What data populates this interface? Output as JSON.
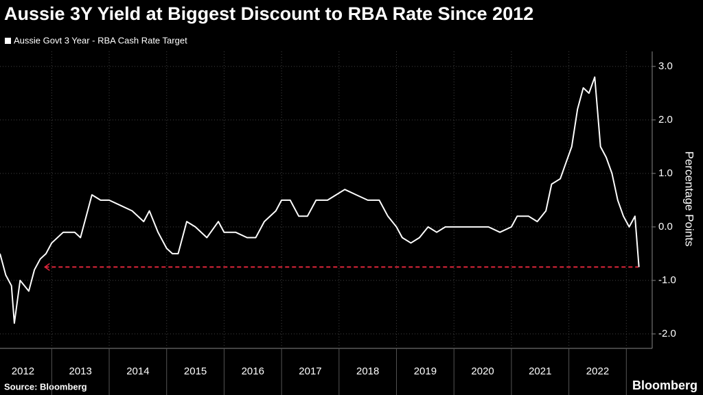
{
  "chart_data": {
    "type": "line",
    "title": "Aussie 3Y Yield at Biggest Discount to RBA Rate Since 2012",
    "y_axis_label": "Percentage Points",
    "source": "Source: Bloomberg",
    "brand": "Bloomberg",
    "series": [
      {
        "name": "Aussie Govt 3 Year - RBA Cash Rate Target",
        "color": "#ffffff",
        "x": [
          2012.1,
          2012.2,
          2012.3,
          2012.35,
          2012.45,
          2012.6,
          2012.7,
          2012.8,
          2012.9,
          2013.0,
          2013.2,
          2013.4,
          2013.5,
          2013.6,
          2013.7,
          2013.85,
          2014.0,
          2014.2,
          2014.4,
          2014.6,
          2014.7,
          2014.85,
          2015.0,
          2015.1,
          2015.2,
          2015.35,
          2015.5,
          2015.7,
          2015.9,
          2016.0,
          2016.2,
          2016.4,
          2016.55,
          2016.7,
          2016.9,
          2017.0,
          2017.15,
          2017.3,
          2017.45,
          2017.6,
          2017.8,
          2017.95,
          2018.1,
          2018.3,
          2018.5,
          2018.7,
          2018.85,
          2019.0,
          2019.1,
          2019.25,
          2019.4,
          2019.55,
          2019.7,
          2019.85,
          2020.0,
          2020.3,
          2020.6,
          2020.8,
          2021.0,
          2021.1,
          2021.3,
          2021.45,
          2021.6,
          2021.7,
          2021.85,
          2021.95,
          2022.05,
          2022.15,
          2022.25,
          2022.35,
          2022.45,
          2022.55,
          2022.65,
          2022.75,
          2022.85,
          2022.95,
          2023.05,
          2023.15,
          2023.22
        ],
        "values": [
          -0.5,
          -0.9,
          -1.1,
          -1.8,
          -1.0,
          -1.2,
          -0.8,
          -0.6,
          -0.5,
          -0.3,
          -0.1,
          -0.1,
          -0.2,
          0.2,
          0.6,
          0.5,
          0.5,
          0.4,
          0.3,
          0.1,
          0.3,
          -0.1,
          -0.4,
          -0.5,
          -0.5,
          0.1,
          0.0,
          -0.2,
          0.1,
          -0.1,
          -0.1,
          -0.2,
          -0.2,
          0.1,
          0.3,
          0.5,
          0.5,
          0.2,
          0.2,
          0.5,
          0.5,
          0.6,
          0.7,
          0.6,
          0.5,
          0.5,
          0.2,
          0.0,
          -0.2,
          -0.3,
          -0.2,
          0.0,
          -0.1,
          0.0,
          0.0,
          0.0,
          0.0,
          -0.1,
          0.0,
          0.2,
          0.2,
          0.1,
          0.3,
          0.8,
          0.9,
          1.2,
          1.5,
          2.2,
          2.6,
          2.5,
          2.8,
          1.5,
          1.3,
          1.0,
          0.5,
          0.2,
          0.0,
          0.2,
          -0.75
        ]
      }
    ],
    "reference_line": {
      "value": -0.75,
      "x": [
        2012.88,
        2023.21
      ],
      "color": "#e0263b"
    },
    "xlim": [
      2012.1,
      2023.45
    ],
    "xticks": [
      {
        "value": 2012.5,
        "label": "2012"
      },
      {
        "value": 2013.5,
        "label": "2013"
      },
      {
        "value": 2014.5,
        "label": "2014"
      },
      {
        "value": 2015.5,
        "label": "2015"
      },
      {
        "value": 2016.5,
        "label": "2016"
      },
      {
        "value": 2017.5,
        "label": "2017"
      },
      {
        "value": 2018.5,
        "label": "2018"
      },
      {
        "value": 2019.5,
        "label": "2019"
      },
      {
        "value": 2020.5,
        "label": "2020"
      },
      {
        "value": 2021.5,
        "label": "2021"
      },
      {
        "value": 2022.5,
        "label": "2022"
      }
    ],
    "xgrid": [
      2013,
      2014,
      2015,
      2016,
      2017,
      2018,
      2019,
      2020,
      2021,
      2022,
      2023
    ],
    "ylim": [
      -2.27,
      3.28
    ],
    "yticks": [
      {
        "value": 3,
        "label": "3.0"
      },
      {
        "value": 2,
        "label": "2.0"
      },
      {
        "value": 1,
        "label": "1.0"
      },
      {
        "value": 0,
        "label": "0.0"
      },
      {
        "value": -1,
        "label": "-1.0"
      },
      {
        "value": -2,
        "label": "-2.0"
      }
    ],
    "grid": true
  }
}
